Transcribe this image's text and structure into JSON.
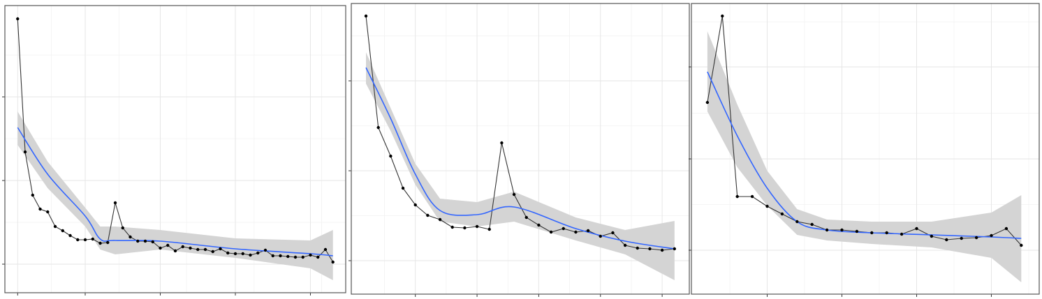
{
  "chart_data": [
    {
      "type": "line",
      "point_color": "#000000",
      "line_color": "#333333",
      "grid": true,
      "xlim": [
        -0.7,
        44.7
      ],
      "ylim": [
        -41,
        371
      ],
      "xticks": [
        1,
        10,
        20,
        30,
        40
      ],
      "yticks": [
        0,
        120,
        240
      ],
      "x": [
        1,
        2,
        3,
        4,
        5,
        6,
        7,
        8,
        9,
        10,
        11,
        12,
        13,
        14,
        15,
        16,
        17,
        18,
        19,
        20,
        21,
        22,
        23,
        24,
        25,
        26,
        27,
        28,
        29,
        30,
        31,
        32,
        33,
        34,
        35,
        36,
        37,
        38,
        39,
        40,
        41,
        42,
        43
      ],
      "values": [
        352,
        161,
        99,
        79,
        75,
        54,
        48,
        41,
        35,
        35,
        36,
        30,
        31,
        88,
        52,
        39,
        33,
        33,
        32,
        23,
        27,
        19,
        25,
        23,
        21,
        21,
        18,
        22,
        16,
        15,
        15,
        13,
        16,
        20,
        12,
        12,
        11,
        10,
        10,
        13,
        10,
        21,
        3
      ],
      "smooth": {
        "color": "#3366ff",
        "band_color": "#d4d4d4",
        "x": [
          1,
          5,
          10,
          12,
          14,
          20,
          30,
          40,
          43
        ],
        "values": [
          196,
          129,
          69,
          36,
          34,
          33,
          22,
          15,
          12
        ],
        "upper": [
          219,
          147,
          81,
          54,
          54,
          49,
          37,
          34,
          49
        ],
        "lower": [
          171,
          109,
          54,
          21,
          14,
          21,
          9,
          -6,
          -23
        ]
      }
    },
    {
      "type": "line",
      "point_color": "#000000",
      "line_color": "#333333",
      "grid": true,
      "xlim": [
        -0.19,
        27.2
      ],
      "ylim": [
        -48,
        369
      ],
      "xticks": [
        5,
        10,
        15,
        20,
        25
      ],
      "yticks": [
        0,
        129,
        258
      ],
      "x": [
        1,
        2,
        3,
        4,
        5,
        6,
        7,
        8,
        9,
        10,
        11,
        12,
        13,
        14,
        15,
        16,
        17,
        18,
        19,
        20,
        21,
        22,
        23,
        24,
        25,
        26
      ],
      "values": [
        351,
        191,
        150,
        104,
        80,
        65,
        59,
        48,
        47,
        49,
        45,
        169,
        95,
        62,
        51,
        41,
        46,
        41,
        43,
        35,
        40,
        22,
        18,
        17,
        15,
        17
      ],
      "smooth": {
        "color": "#3366ff",
        "band_color": "#d4d4d4",
        "x": [
          1,
          3,
          5,
          7,
          10,
          13,
          18,
          22,
          26
        ],
        "values": [
          277,
          204,
          124,
          72,
          66,
          77,
          46,
          28,
          17
        ],
        "upper": [
          299,
          219,
          139,
          89,
          84,
          99,
          62,
          44,
          57
        ],
        "lower": [
          254,
          186,
          109,
          56,
          49,
          56,
          29,
          9,
          -28
        ]
      }
    },
    {
      "type": "line",
      "point_color": "#000000",
      "line_color": "#333333",
      "grid": true,
      "xlim": [
        -0.07,
        23.2
      ],
      "ylim": [
        -63,
        354
      ],
      "xticks": [
        5,
        10,
        15,
        20
      ],
      "yticks": [
        0,
        131,
        263
      ],
      "x": [
        1,
        2,
        3,
        4,
        5,
        6,
        7,
        8,
        9,
        10,
        11,
        12,
        13,
        14,
        15,
        16,
        17,
        18,
        19,
        20,
        21,
        22
      ],
      "values": [
        212,
        336,
        77,
        77,
        63,
        52,
        41,
        37,
        29,
        29,
        27,
        25,
        25,
        23,
        31,
        20,
        15,
        17,
        18,
        21,
        31,
        7
      ],
      "smooth": {
        "color": "#3366ff",
        "band_color": "#d4d4d4",
        "x": [
          1,
          3,
          5,
          7,
          9,
          12,
          16,
          20,
          22
        ],
        "values": [
          256,
          164,
          89,
          41,
          29,
          25,
          22,
          19,
          17
        ],
        "upper": [
          314,
          209,
          114,
          59,
          44,
          41,
          41,
          54,
          79
        ],
        "lower": [
          199,
          119,
          64,
          22,
          14,
          9,
          4,
          -11,
          -46
        ]
      }
    }
  ]
}
